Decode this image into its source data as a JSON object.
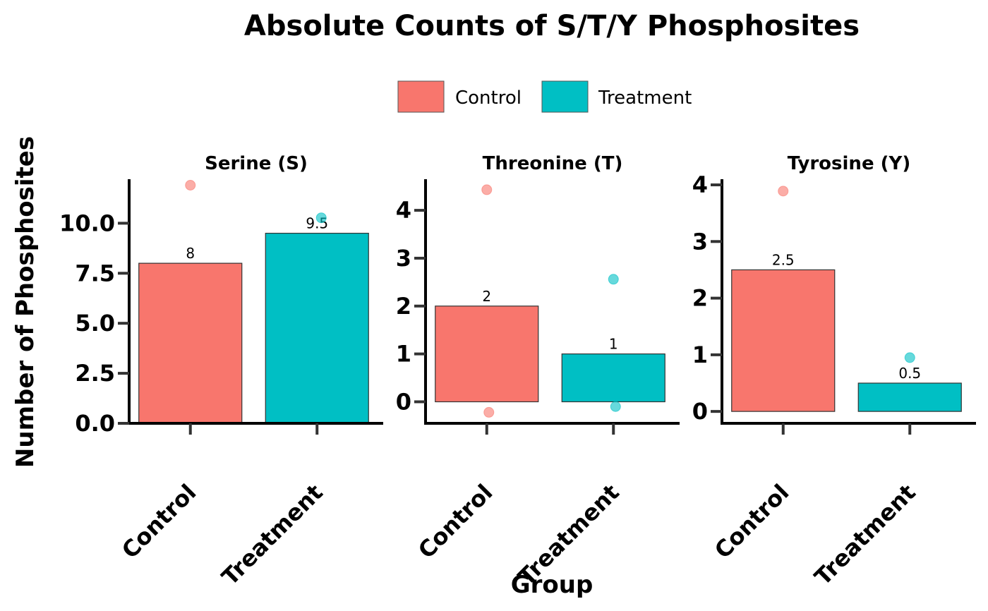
{
  "chart_data": {
    "type": "bar",
    "title": "Absolute Counts of S/T/Y Phosphosites",
    "xlabel": "Group",
    "ylabel": "Number of Phosphosites",
    "categories": [
      "Control",
      "Treatment"
    ],
    "legend": {
      "position": "top",
      "entries": [
        {
          "label": "Control",
          "color": "#F8766D"
        },
        {
          "label": "Treatment",
          "color": "#00BFC4"
        }
      ]
    },
    "grid": false,
    "facets": [
      {
        "title": "Serine (S)",
        "ylim": [
          0,
          12.2
        ],
        "yticks": [
          0,
          2.5,
          5,
          7.5,
          10
        ],
        "ytick_labels": [
          "0.0",
          "2.5",
          "5.0",
          "7.5",
          "10.0"
        ],
        "bars": [
          {
            "category": "Control",
            "value": 8,
            "label": "8"
          },
          {
            "category": "Treatment",
            "value": 9.5,
            "label": "9.5"
          }
        ],
        "points": [
          {
            "category": "Control",
            "value": 11.9
          },
          {
            "category": "Treatment",
            "value": 10.27
          }
        ]
      },
      {
        "title": "Threonine (T)",
        "ylim": [
          -0.45,
          4.65
        ],
        "yticks": [
          0,
          1,
          2,
          3,
          4
        ],
        "ytick_labels": [
          "0",
          "1",
          "2",
          "3",
          "4"
        ],
        "bars": [
          {
            "category": "Control",
            "value": 2,
            "label": "2"
          },
          {
            "category": "Treatment",
            "value": 1,
            "label": "1"
          }
        ],
        "points": [
          {
            "category": "Control",
            "value": 4.43
          },
          {
            "category": "Control",
            "value": -0.22
          },
          {
            "category": "Treatment",
            "value": 2.56
          },
          {
            "category": "Treatment",
            "value": -0.1
          }
        ]
      },
      {
        "title": "Tyrosine (Y)",
        "ylim": [
          -0.21,
          4.1
        ],
        "yticks": [
          0,
          1,
          2,
          3,
          4
        ],
        "ytick_labels": [
          "0",
          "1",
          "2",
          "3",
          "4"
        ],
        "bars": [
          {
            "category": "Control",
            "value": 2.5,
            "label": "2.5"
          },
          {
            "category": "Treatment",
            "value": 0.5,
            "label": "0.5"
          }
        ],
        "points": [
          {
            "category": "Control",
            "value": 3.89
          },
          {
            "category": "Treatment",
            "value": 0.95
          }
        ]
      }
    ]
  }
}
